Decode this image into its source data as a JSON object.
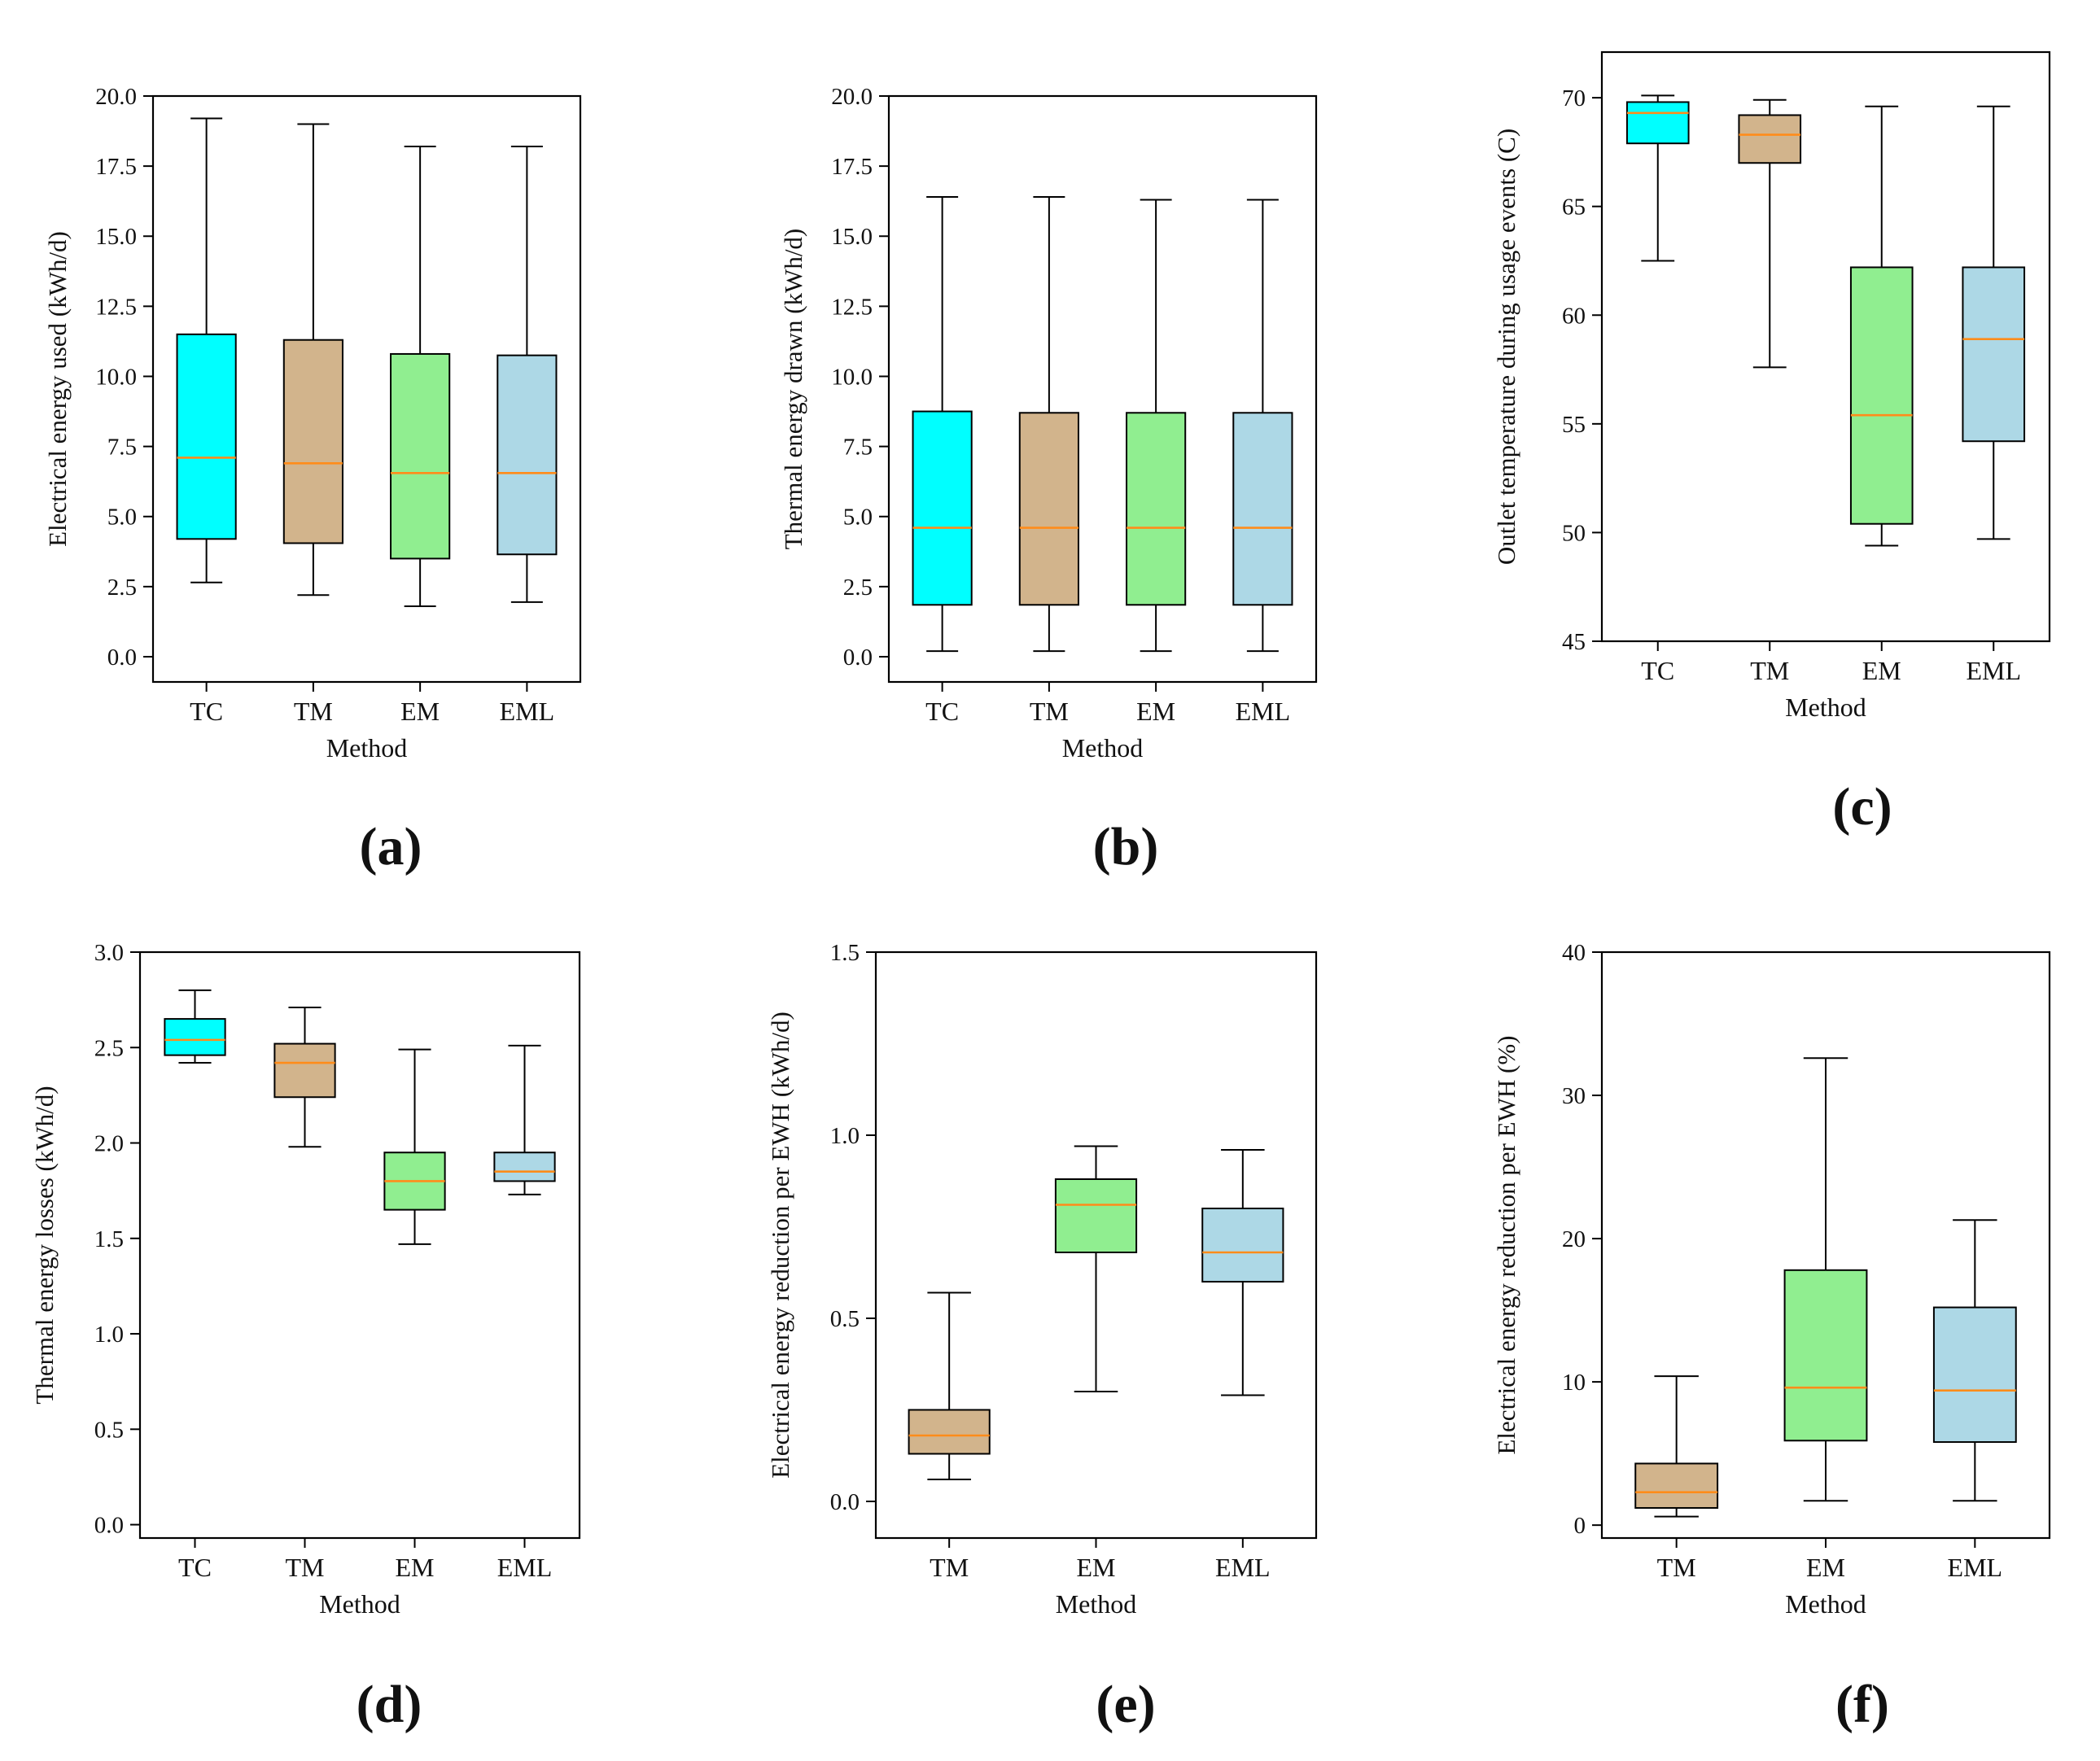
{
  "figure": {
    "colors": {
      "TC": "#00ffff",
      "TM": "#d2b48c",
      "EM": "#90ee90",
      "EML": "#add8e6",
      "median": "#ff8c1a",
      "frame": "#000000"
    }
  },
  "chart_data": [
    {
      "id": "a",
      "caption": "(a)",
      "type": "box",
      "title": "",
      "xlabel": "Method",
      "ylabel": "Electrical energy used (kWh/d)",
      "ylim": [
        -0.9,
        20.0
      ],
      "yticks": [
        0.0,
        2.5,
        5.0,
        7.5,
        10.0,
        12.5,
        15.0,
        17.5,
        20.0
      ],
      "ytick_labels": [
        "0.0",
        "2.5",
        "5.0",
        "7.5",
        "10.0",
        "12.5",
        "15.0",
        "17.5",
        "20.0"
      ],
      "categories": [
        "TC",
        "TM",
        "EM",
        "EML"
      ],
      "boxes": [
        {
          "whislo": 2.65,
          "q1": 4.2,
          "med": 7.1,
          "q3": 11.5,
          "whishi": 19.2
        },
        {
          "whislo": 2.2,
          "q1": 4.05,
          "med": 6.9,
          "q3": 11.3,
          "whishi": 19.0
        },
        {
          "whislo": 1.8,
          "q1": 3.5,
          "med": 6.55,
          "q3": 10.8,
          "whishi": 18.2
        },
        {
          "whislo": 1.95,
          "q1": 3.65,
          "med": 6.55,
          "q3": 10.75,
          "whishi": 18.2
        }
      ]
    },
    {
      "id": "b",
      "caption": "(b)",
      "type": "box",
      "title": "",
      "xlabel": "Method",
      "ylabel": "Thermal energy drawn (kWh/d)",
      "ylim": [
        -0.9,
        20.0
      ],
      "yticks": [
        0.0,
        2.5,
        5.0,
        7.5,
        10.0,
        12.5,
        15.0,
        17.5,
        20.0
      ],
      "ytick_labels": [
        "0.0",
        "2.5",
        "5.0",
        "7.5",
        "10.0",
        "12.5",
        "15.0",
        "17.5",
        "20.0"
      ],
      "categories": [
        "TC",
        "TM",
        "EM",
        "EML"
      ],
      "boxes": [
        {
          "whislo": 0.2,
          "q1": 1.85,
          "med": 4.6,
          "q3": 8.75,
          "whishi": 16.4
        },
        {
          "whislo": 0.2,
          "q1": 1.85,
          "med": 4.6,
          "q3": 8.7,
          "whishi": 16.4
        },
        {
          "whislo": 0.2,
          "q1": 1.85,
          "med": 4.6,
          "q3": 8.7,
          "whishi": 16.3
        },
        {
          "whislo": 0.2,
          "q1": 1.85,
          "med": 4.6,
          "q3": 8.7,
          "whishi": 16.3
        }
      ]
    },
    {
      "id": "c",
      "caption": "(c)",
      "type": "box",
      "title": "",
      "xlabel": "Method",
      "ylabel": "Outlet temperature during usage events (C)",
      "ylim": [
        45.0,
        72.1
      ],
      "yticks": [
        45,
        50,
        55,
        60,
        65,
        70
      ],
      "ytick_labels": [
        "45",
        "50",
        "55",
        "60",
        "65",
        "70"
      ],
      "categories": [
        "TC",
        "TM",
        "EM",
        "EML"
      ],
      "boxes": [
        {
          "whislo": 62.5,
          "q1": 67.9,
          "med": 69.3,
          "q3": 69.8,
          "whishi": 70.1
        },
        {
          "whislo": 57.6,
          "q1": 67.0,
          "med": 68.3,
          "q3": 69.2,
          "whishi": 69.9
        },
        {
          "whislo": 49.4,
          "q1": 50.4,
          "med": 55.4,
          "q3": 62.2,
          "whishi": 69.6
        },
        {
          "whislo": 49.7,
          "q1": 54.2,
          "med": 58.9,
          "q3": 62.2,
          "whishi": 69.6
        }
      ]
    },
    {
      "id": "d",
      "caption": "(d)",
      "type": "box",
      "title": "",
      "xlabel": "Method",
      "ylabel": "Thermal energy losses (kWh/d)",
      "ylim": [
        -0.07,
        3.0
      ],
      "yticks": [
        0.0,
        0.5,
        1.0,
        1.5,
        2.0,
        2.5,
        3.0
      ],
      "ytick_labels": [
        "0.0",
        "0.5",
        "1.0",
        "1.5",
        "2.0",
        "2.5",
        "3.0"
      ],
      "categories": [
        "TC",
        "TM",
        "EM",
        "EML"
      ],
      "boxes": [
        {
          "whislo": 2.42,
          "q1": 2.46,
          "med": 2.54,
          "q3": 2.65,
          "whishi": 2.8
        },
        {
          "whislo": 1.98,
          "q1": 2.24,
          "med": 2.42,
          "q3": 2.52,
          "whishi": 2.71
        },
        {
          "whislo": 1.47,
          "q1": 1.65,
          "med": 1.8,
          "q3": 1.95,
          "whishi": 2.49
        },
        {
          "whislo": 1.73,
          "q1": 1.8,
          "med": 1.85,
          "q3": 1.95,
          "whishi": 2.51
        }
      ]
    },
    {
      "id": "e",
      "caption": "(e)",
      "type": "box",
      "title": "",
      "xlabel": "Method",
      "ylabel": "Electrical energy reduction per EWH (kWh/d)",
      "ylim": [
        -0.1,
        1.5
      ],
      "yticks": [
        0.0,
        0.5,
        1.0,
        1.5
      ],
      "ytick_labels": [
        "0.0",
        "0.5",
        "1.0",
        "1.5"
      ],
      "categories": [
        "TM",
        "EM",
        "EML"
      ],
      "boxes": [
        {
          "whislo": 0.06,
          "q1": 0.13,
          "med": 0.18,
          "q3": 0.25,
          "whishi": 0.57
        },
        {
          "whislo": 0.3,
          "q1": 0.68,
          "med": 0.81,
          "q3": 0.88,
          "whishi": 0.97
        },
        {
          "whislo": 0.29,
          "q1": 0.6,
          "med": 0.68,
          "q3": 0.8,
          "whishi": 0.96
        }
      ]
    },
    {
      "id": "f",
      "caption": "(f)",
      "type": "box",
      "title": "",
      "xlabel": "Method",
      "ylabel": "Electrical energy reduction per EWH (%)",
      "ylim": [
        -0.9,
        40.0
      ],
      "yticks": [
        0,
        10,
        20,
        30,
        40
      ],
      "ytick_labels": [
        "0",
        "10",
        "20",
        "30",
        "40"
      ],
      "categories": [
        "TM",
        "EM",
        "EML"
      ],
      "boxes": [
        {
          "whislo": 0.6,
          "q1": 1.2,
          "med": 2.3,
          "q3": 4.3,
          "whishi": 10.4
        },
        {
          "whislo": 1.7,
          "q1": 5.9,
          "med": 9.6,
          "q3": 17.8,
          "whishi": 32.6
        },
        {
          "whislo": 1.7,
          "q1": 5.8,
          "med": 9.4,
          "q3": 15.2,
          "whishi": 21.3
        }
      ]
    }
  ]
}
